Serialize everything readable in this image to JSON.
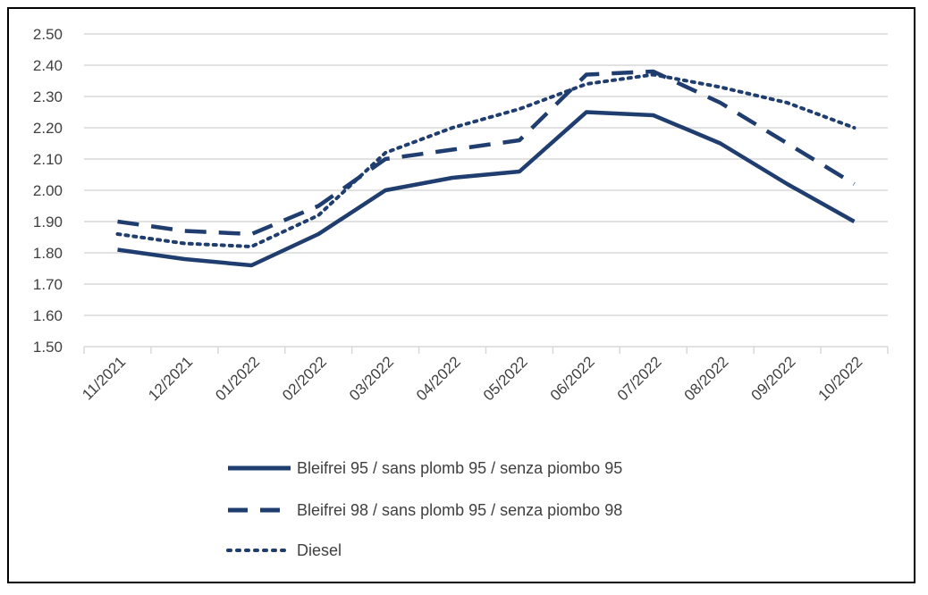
{
  "chart_data": {
    "type": "line",
    "title": "",
    "xlabel": "",
    "ylabel": "",
    "categories": [
      "11/2021",
      "12/2021",
      "01/2022",
      "02/2022",
      "03/2022",
      "04/2022",
      "05/2022",
      "06/2022",
      "07/2022",
      "08/2022",
      "09/2022",
      "10/2022"
    ],
    "ylim": [
      1.5,
      2.5
    ],
    "yticks": [
      "1.50",
      "1.60",
      "1.70",
      "1.80",
      "1.90",
      "2.00",
      "2.10",
      "2.20",
      "2.30",
      "2.40",
      "2.50"
    ],
    "grid": true,
    "legend_position": "bottom",
    "series": [
      {
        "name": "Bleifrei 95 / sans plomb 95 / senza piombo 95",
        "style": "solid",
        "color": "#1f3d6e",
        "values": [
          1.81,
          1.78,
          1.76,
          1.86,
          2.0,
          2.04,
          2.06,
          2.25,
          2.24,
          2.15,
          2.02,
          1.9
        ]
      },
      {
        "name": "Bleifrei 98 / sans plomb 95 / senza piombo 98",
        "style": "dashed",
        "color": "#1f3d6e",
        "values": [
          1.9,
          1.87,
          1.86,
          1.95,
          2.1,
          2.13,
          2.16,
          2.37,
          2.38,
          2.28,
          2.15,
          2.02
        ]
      },
      {
        "name": "Diesel",
        "style": "dotted",
        "color": "#1f3d6e",
        "values": [
          1.86,
          1.83,
          1.82,
          1.92,
          2.12,
          2.2,
          2.26,
          2.34,
          2.37,
          2.33,
          2.28,
          2.2
        ]
      }
    ]
  }
}
